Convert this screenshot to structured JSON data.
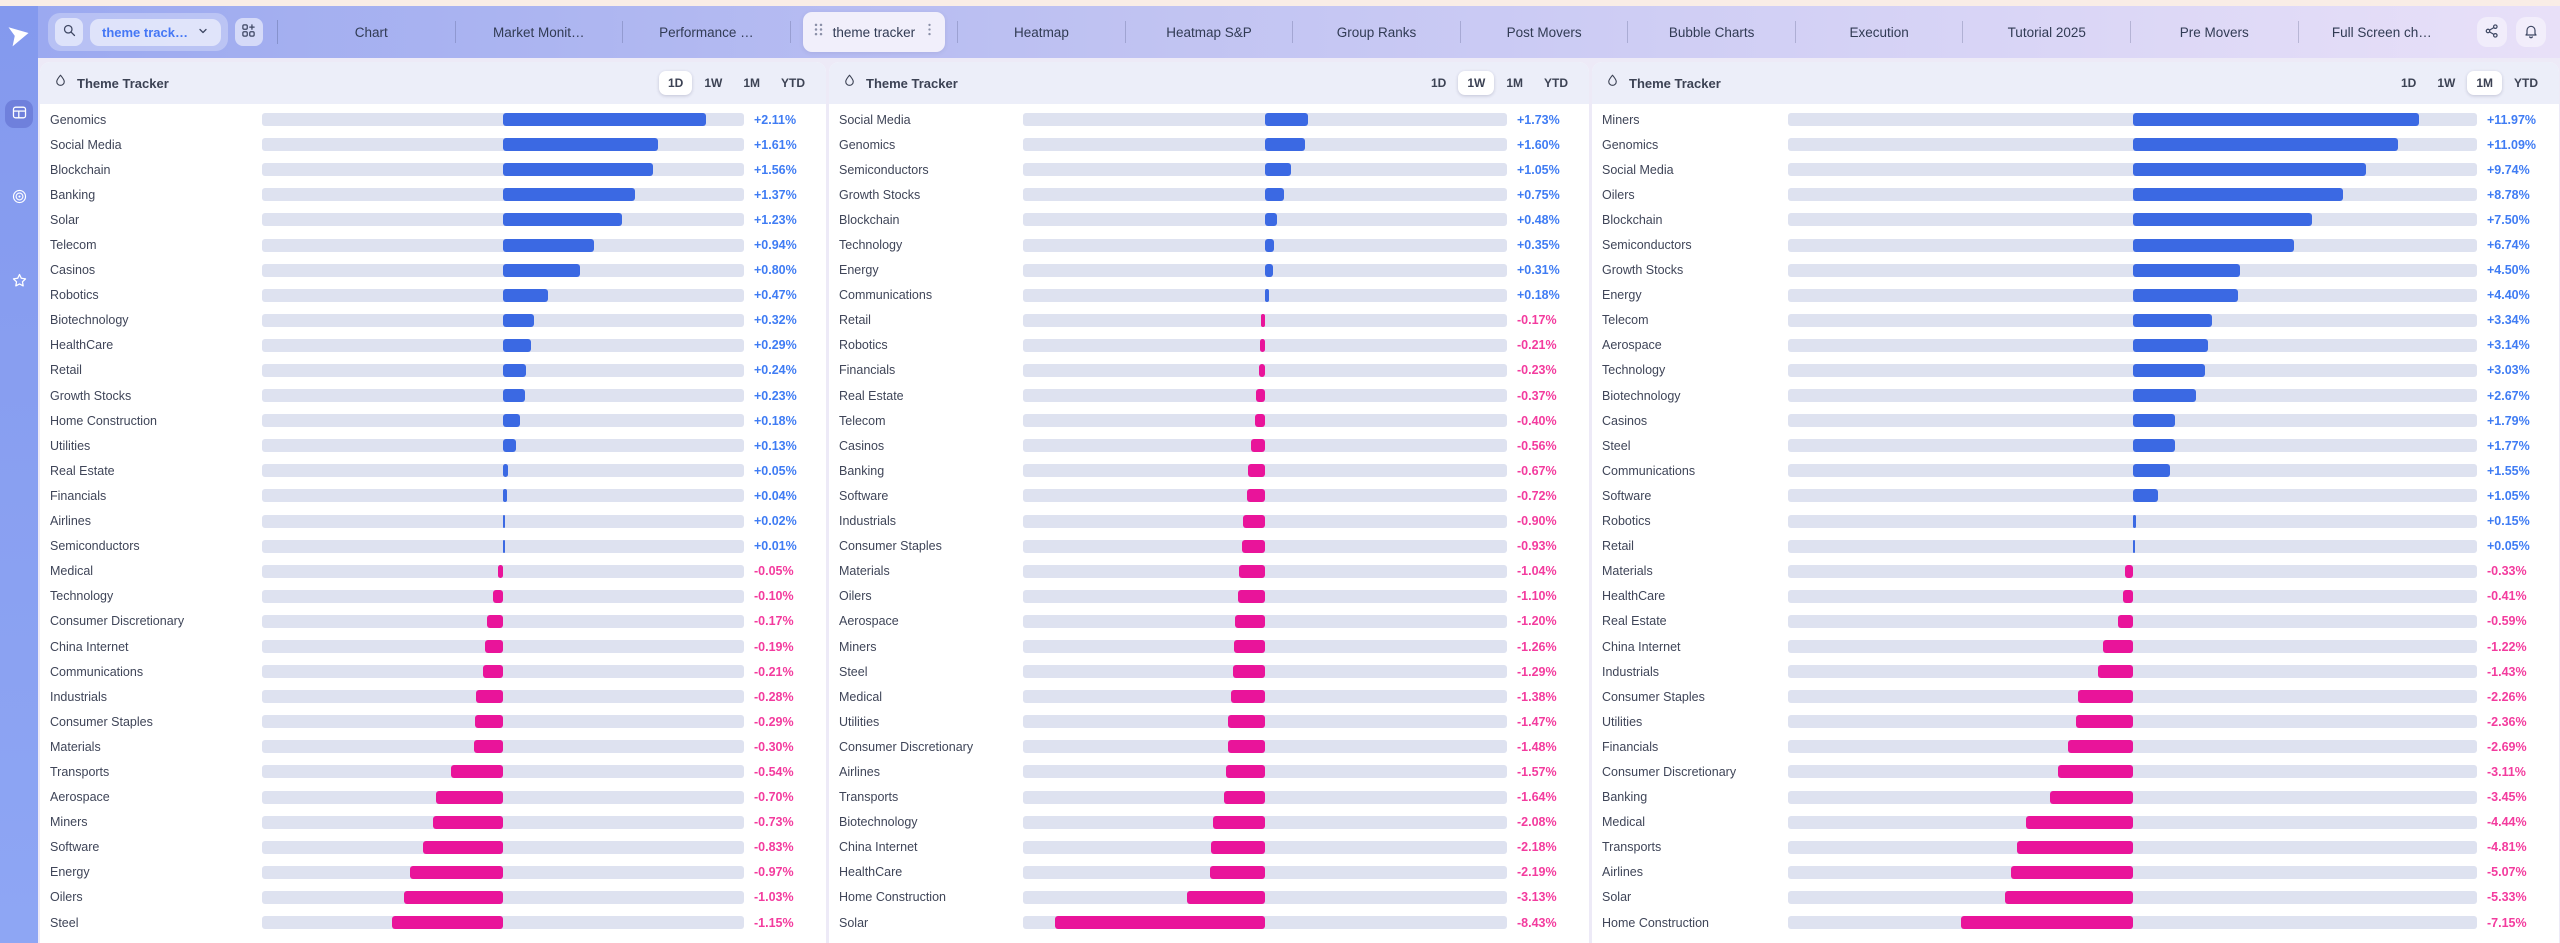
{
  "topbar": {
    "search": {
      "dropdown_label": "theme track…"
    },
    "tabs": [
      "Chart",
      "Market Monit…",
      "Performance …",
      "theme tracker",
      "Heatmap",
      "Heatmap S&P",
      "Group Ranks",
      "Post Movers",
      "Bubble Charts",
      "Execution",
      "Tutorial 2025",
      "Pre Movers",
      "Full Screen ch…"
    ],
    "active_tab": "theme tracker"
  },
  "colors": {
    "bar_positive": "#3B69E3",
    "bar_negative": "#E9149A",
    "value_positive": "#3F7CF4",
    "value_negative": "#F33B9E",
    "track": "#DEE2F0"
  },
  "panels": [
    {
      "title": "Theme Tracker",
      "periods": [
        "1D",
        "1W",
        "1M",
        "YTD"
      ],
      "active_period": "1D",
      "bar_scale_max_pct": 2.5,
      "rows": [
        {
          "label": "Genomics",
          "value": 2.11,
          "display": "+2.11%"
        },
        {
          "label": "Social Media",
          "value": 1.61,
          "display": "+1.61%"
        },
        {
          "label": "Blockchain",
          "value": 1.56,
          "display": "+1.56%"
        },
        {
          "label": "Banking",
          "value": 1.37,
          "display": "+1.37%"
        },
        {
          "label": "Solar",
          "value": 1.23,
          "display": "+1.23%"
        },
        {
          "label": "Telecom",
          "value": 0.94,
          "display": "+0.94%"
        },
        {
          "label": "Casinos",
          "value": 0.8,
          "display": "+0.80%"
        },
        {
          "label": "Robotics",
          "value": 0.47,
          "display": "+0.47%"
        },
        {
          "label": "Biotechnology",
          "value": 0.32,
          "display": "+0.32%"
        },
        {
          "label": "HealthCare",
          "value": 0.29,
          "display": "+0.29%"
        },
        {
          "label": "Retail",
          "value": 0.24,
          "display": "+0.24%"
        },
        {
          "label": "Growth Stocks",
          "value": 0.23,
          "display": "+0.23%"
        },
        {
          "label": "Home Construction",
          "value": 0.18,
          "display": "+0.18%"
        },
        {
          "label": "Utilities",
          "value": 0.13,
          "display": "+0.13%"
        },
        {
          "label": "Real Estate",
          "value": 0.05,
          "display": "+0.05%"
        },
        {
          "label": "Financials",
          "value": 0.04,
          "display": "+0.04%"
        },
        {
          "label": "Airlines",
          "value": 0.02,
          "display": "+0.02%"
        },
        {
          "label": "Semiconductors",
          "value": 0.01,
          "display": "+0.01%"
        },
        {
          "label": "Medical",
          "value": -0.05,
          "display": "-0.05%"
        },
        {
          "label": "Technology",
          "value": -0.1,
          "display": "-0.10%"
        },
        {
          "label": "Consumer Discretionary",
          "value": -0.17,
          "display": "-0.17%"
        },
        {
          "label": "China Internet",
          "value": -0.19,
          "display": "-0.19%"
        },
        {
          "label": "Communications",
          "value": -0.21,
          "display": "-0.21%"
        },
        {
          "label": "Industrials",
          "value": -0.28,
          "display": "-0.28%"
        },
        {
          "label": "Consumer Staples",
          "value": -0.29,
          "display": "-0.29%"
        },
        {
          "label": "Materials",
          "value": -0.3,
          "display": "-0.30%"
        },
        {
          "label": "Transports",
          "value": -0.54,
          "display": "-0.54%"
        },
        {
          "label": "Aerospace",
          "value": -0.7,
          "display": "-0.70%"
        },
        {
          "label": "Miners",
          "value": -0.73,
          "display": "-0.73%"
        },
        {
          "label": "Software",
          "value": -0.83,
          "display": "-0.83%"
        },
        {
          "label": "Energy",
          "value": -0.97,
          "display": "-0.97%"
        },
        {
          "label": "Oilers",
          "value": -1.03,
          "display": "-1.03%"
        },
        {
          "label": "Steel",
          "value": -1.15,
          "display": "-1.15%"
        }
      ]
    },
    {
      "title": "Theme Tracker",
      "periods": [
        "1D",
        "1W",
        "1M",
        "YTD"
      ],
      "active_period": "1W",
      "bar_scale_max_pct": 9.7,
      "rows": [
        {
          "label": "Social Media",
          "value": 1.73,
          "display": "+1.73%"
        },
        {
          "label": "Genomics",
          "value": 1.6,
          "display": "+1.60%"
        },
        {
          "label": "Semiconductors",
          "value": 1.05,
          "display": "+1.05%"
        },
        {
          "label": "Growth Stocks",
          "value": 0.75,
          "display": "+0.75%"
        },
        {
          "label": "Blockchain",
          "value": 0.48,
          "display": "+0.48%"
        },
        {
          "label": "Technology",
          "value": 0.35,
          "display": "+0.35%"
        },
        {
          "label": "Energy",
          "value": 0.31,
          "display": "+0.31%"
        },
        {
          "label": "Communications",
          "value": 0.18,
          "display": "+0.18%"
        },
        {
          "label": "Retail",
          "value": -0.17,
          "display": "-0.17%"
        },
        {
          "label": "Robotics",
          "value": -0.21,
          "display": "-0.21%"
        },
        {
          "label": "Financials",
          "value": -0.23,
          "display": "-0.23%"
        },
        {
          "label": "Real Estate",
          "value": -0.37,
          "display": "-0.37%"
        },
        {
          "label": "Telecom",
          "value": -0.4,
          "display": "-0.40%"
        },
        {
          "label": "Casinos",
          "value": -0.56,
          "display": "-0.56%"
        },
        {
          "label": "Banking",
          "value": -0.67,
          "display": "-0.67%"
        },
        {
          "label": "Software",
          "value": -0.72,
          "display": "-0.72%"
        },
        {
          "label": "Industrials",
          "value": -0.9,
          "display": "-0.90%"
        },
        {
          "label": "Consumer Staples",
          "value": -0.93,
          "display": "-0.93%"
        },
        {
          "label": "Materials",
          "value": -1.04,
          "display": "-1.04%"
        },
        {
          "label": "Oilers",
          "value": -1.1,
          "display": "-1.10%"
        },
        {
          "label": "Aerospace",
          "value": -1.2,
          "display": "-1.20%"
        },
        {
          "label": "Miners",
          "value": -1.26,
          "display": "-1.26%"
        },
        {
          "label": "Steel",
          "value": -1.29,
          "display": "-1.29%"
        },
        {
          "label": "Medical",
          "value": -1.38,
          "display": "-1.38%"
        },
        {
          "label": "Utilities",
          "value": -1.47,
          "display": "-1.47%"
        },
        {
          "label": "Consumer Discretionary",
          "value": -1.48,
          "display": "-1.48%"
        },
        {
          "label": "Airlines",
          "value": -1.57,
          "display": "-1.57%"
        },
        {
          "label": "Transports",
          "value": -1.64,
          "display": "-1.64%"
        },
        {
          "label": "Biotechnology",
          "value": -2.08,
          "display": "-2.08%"
        },
        {
          "label": "China Internet",
          "value": -2.18,
          "display": "-2.18%"
        },
        {
          "label": "HealthCare",
          "value": -2.19,
          "display": "-2.19%"
        },
        {
          "label": "Home Construction",
          "value": -3.13,
          "display": "-3.13%"
        },
        {
          "label": "Solar",
          "value": -8.43,
          "display": "-8.43%"
        }
      ]
    },
    {
      "title": "Theme Tracker",
      "periods": [
        "1D",
        "1W",
        "1M",
        "YTD"
      ],
      "active_period": "1M",
      "bar_scale_max_pct": 14.4,
      "rows": [
        {
          "label": "Miners",
          "value": 11.97,
          "display": "+11.97%"
        },
        {
          "label": "Genomics",
          "value": 11.09,
          "display": "+11.09%"
        },
        {
          "label": "Social Media",
          "value": 9.74,
          "display": "+9.74%"
        },
        {
          "label": "Oilers",
          "value": 8.78,
          "display": "+8.78%"
        },
        {
          "label": "Blockchain",
          "value": 7.5,
          "display": "+7.50%"
        },
        {
          "label": "Semiconductors",
          "value": 6.74,
          "display": "+6.74%"
        },
        {
          "label": "Growth Stocks",
          "value": 4.5,
          "display": "+4.50%"
        },
        {
          "label": "Energy",
          "value": 4.4,
          "display": "+4.40%"
        },
        {
          "label": "Telecom",
          "value": 3.34,
          "display": "+3.34%"
        },
        {
          "label": "Aerospace",
          "value": 3.14,
          "display": "+3.14%"
        },
        {
          "label": "Technology",
          "value": 3.03,
          "display": "+3.03%"
        },
        {
          "label": "Biotechnology",
          "value": 2.67,
          "display": "+2.67%"
        },
        {
          "label": "Casinos",
          "value": 1.79,
          "display": "+1.79%"
        },
        {
          "label": "Steel",
          "value": 1.77,
          "display": "+1.77%"
        },
        {
          "label": "Communications",
          "value": 1.55,
          "display": "+1.55%"
        },
        {
          "label": "Software",
          "value": 1.05,
          "display": "+1.05%"
        },
        {
          "label": "Robotics",
          "value": 0.15,
          "display": "+0.15%"
        },
        {
          "label": "Retail",
          "value": 0.05,
          "display": "+0.05%"
        },
        {
          "label": "Materials",
          "value": -0.33,
          "display": "-0.33%"
        },
        {
          "label": "HealthCare",
          "value": -0.41,
          "display": "-0.41%"
        },
        {
          "label": "Real Estate",
          "value": -0.59,
          "display": "-0.59%"
        },
        {
          "label": "China Internet",
          "value": -1.22,
          "display": "-1.22%"
        },
        {
          "label": "Industrials",
          "value": -1.43,
          "display": "-1.43%"
        },
        {
          "label": "Consumer Staples",
          "value": -2.26,
          "display": "-2.26%"
        },
        {
          "label": "Utilities",
          "value": -2.36,
          "display": "-2.36%"
        },
        {
          "label": "Financials",
          "value": -2.69,
          "display": "-2.69%"
        },
        {
          "label": "Consumer Discretionary",
          "value": -3.11,
          "display": "-3.11%"
        },
        {
          "label": "Banking",
          "value": -3.45,
          "display": "-3.45%"
        },
        {
          "label": "Medical",
          "value": -4.44,
          "display": "-4.44%"
        },
        {
          "label": "Transports",
          "value": -4.81,
          "display": "-4.81%"
        },
        {
          "label": "Airlines",
          "value": -5.07,
          "display": "-5.07%"
        },
        {
          "label": "Solar",
          "value": -5.33,
          "display": "-5.33%"
        },
        {
          "label": "Home Construction",
          "value": -7.15,
          "display": "-7.15%"
        }
      ]
    }
  ]
}
